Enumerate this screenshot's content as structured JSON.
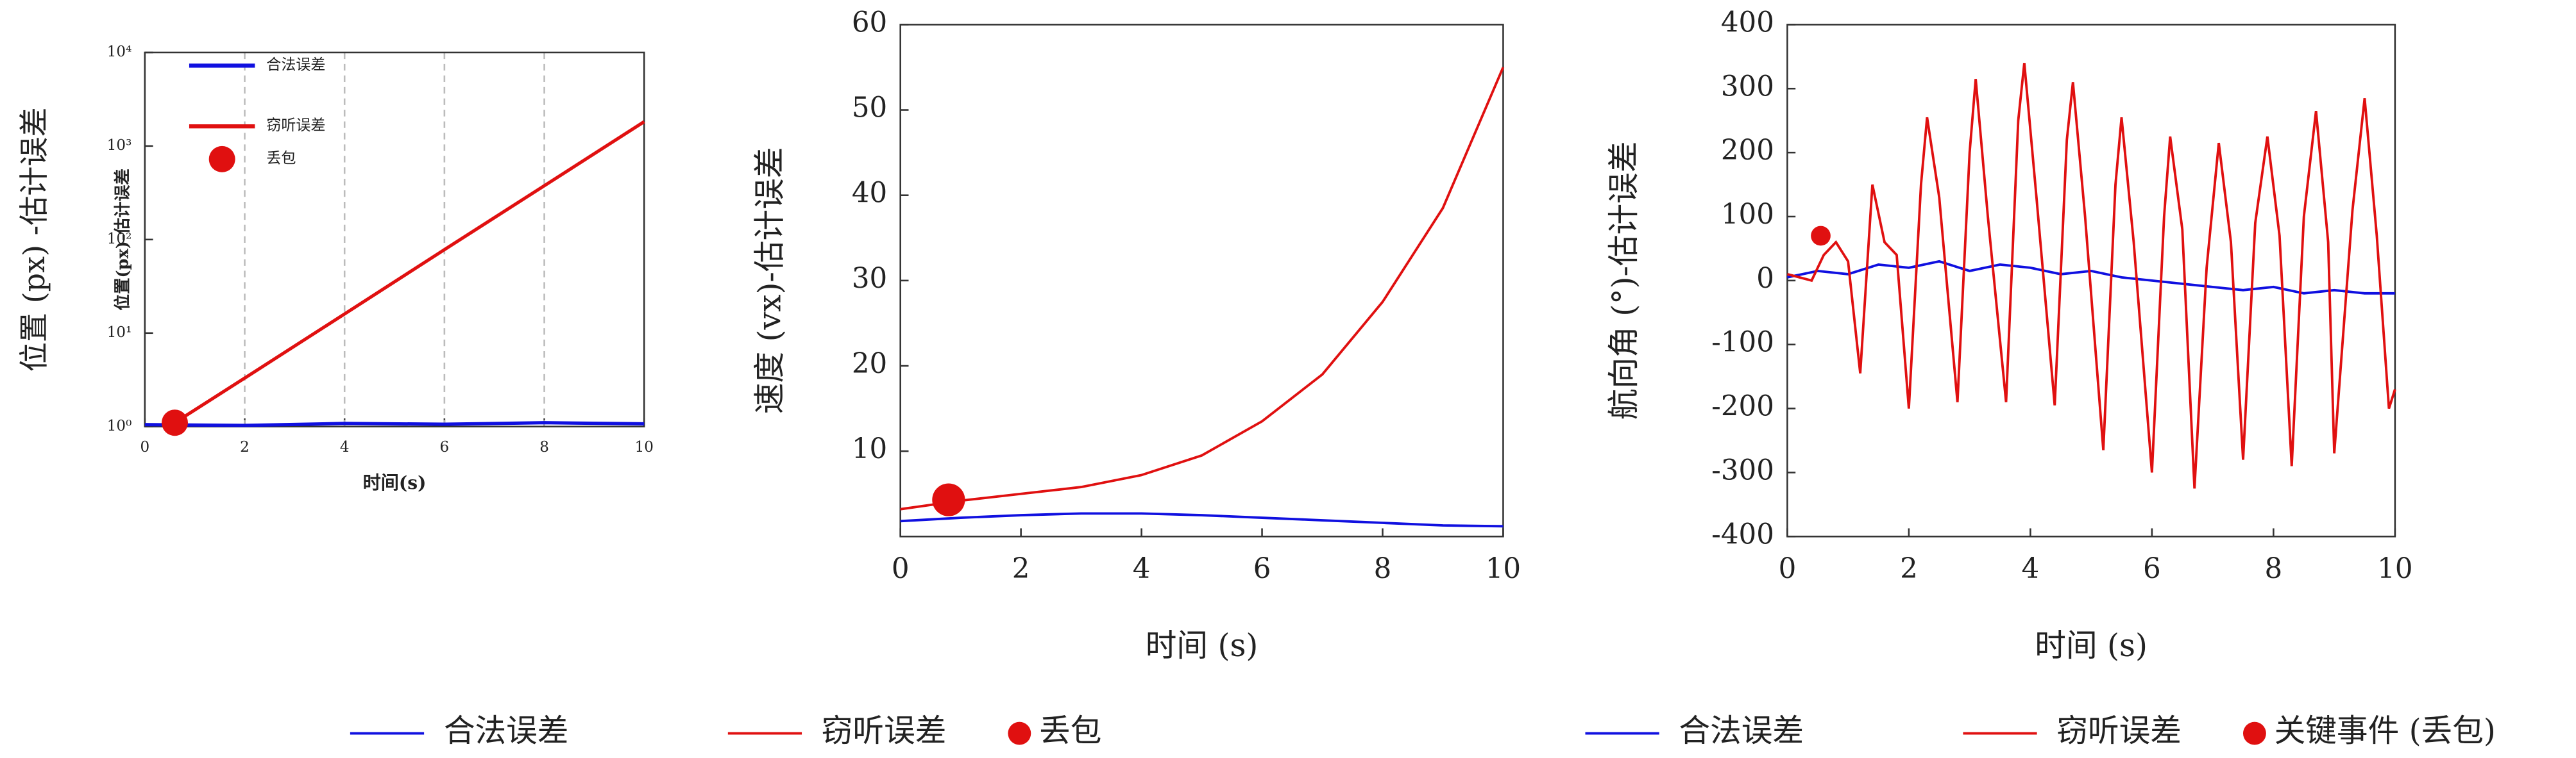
{
  "chart_data": [
    {
      "type": "line",
      "ylabel": "位置 (px) -估计误差",
      "ylabel_inner": "位置(px)-估计误差",
      "xlabel": "时间(s)",
      "xlim": [
        0,
        10
      ],
      "ylim": [
        1,
        10000
      ],
      "log_y": true,
      "grid": true,
      "legend": "upper left",
      "xticks": [
        0,
        2,
        4,
        6,
        8,
        10
      ],
      "yticks": [
        {
          "value": 1,
          "label": "10⁰"
        },
        {
          "value": 10,
          "label": "10¹"
        },
        {
          "value": 100,
          "label": "10²"
        },
        {
          "value": 1000,
          "label": "10³"
        },
        {
          "value": 10000,
          "label": "10⁴"
        }
      ],
      "series": [
        {
          "name": "合法误差",
          "color": "#1010e0",
          "style": "line",
          "x": [
            0,
            2,
            4,
            6,
            8,
            10
          ],
          "values": [
            1.05,
            1.03,
            1.08,
            1.06,
            1.1,
            1.07
          ]
        },
        {
          "name": "窃听误差",
          "color": "#e01010",
          "style": "line",
          "x": [
            0.6,
            2,
            4,
            6,
            8,
            10
          ],
          "values": [
            1.1,
            3.3,
            16,
            78,
            376,
            1820
          ]
        },
        {
          "name": "丢包",
          "color": "#e01010",
          "style": "marker",
          "x": [
            0.6
          ],
          "values": [
            1.1
          ]
        }
      ]
    },
    {
      "type": "line",
      "ylabel": "速度 (vx)-估计误差",
      "xlabel": "时间 (s)",
      "xlim": [
        0,
        10
      ],
      "ylim": [
        0,
        60
      ],
      "log_y": false,
      "grid": false,
      "legend": "below",
      "xticks": [
        0,
        2,
        4,
        6,
        8,
        10
      ],
      "yticks": [
        10,
        20,
        30,
        40,
        50,
        60
      ],
      "series": [
        {
          "name": "合法误差",
          "color": "#1010e0",
          "style": "line",
          "x": [
            0,
            1,
            2,
            3,
            4,
            5,
            6,
            7,
            8,
            9,
            10
          ],
          "values": [
            1.8,
            2.2,
            2.5,
            2.7,
            2.7,
            2.5,
            2.2,
            1.9,
            1.6,
            1.3,
            1.2
          ]
        },
        {
          "name": "窃听误差",
          "color": "#e01010",
          "style": "line",
          "x": [
            0,
            1,
            2,
            3,
            4,
            5,
            6,
            7,
            8,
            9,
            10
          ],
          "values": [
            3.2,
            4.2,
            5.0,
            5.8,
            7.2,
            9.5,
            13.5,
            19,
            27.5,
            38.5,
            55
          ]
        },
        {
          "name": "丢包",
          "color": "#e01010",
          "style": "marker",
          "x": [
            0.8
          ],
          "values": [
            4.3
          ]
        }
      ]
    },
    {
      "type": "line",
      "ylabel": "航向角 (°)-估计误差",
      "xlabel": "时间 (s)",
      "xlim": [
        0,
        10
      ],
      "ylim": [
        -400,
        400
      ],
      "log_y": false,
      "grid": false,
      "legend": "below",
      "xticks": [
        0,
        2,
        4,
        6,
        8,
        10
      ],
      "yticks": [
        -400,
        -300,
        -200,
        -100,
        0,
        100,
        200,
        300,
        400
      ],
      "series": [
        {
          "name": "合法误差",
          "color": "#1010e0",
          "style": "line",
          "x": [
            0,
            0.5,
            1,
            1.5,
            2,
            2.5,
            3,
            3.5,
            4,
            4.5,
            5,
            5.5,
            6,
            6.5,
            7,
            7.5,
            8,
            8.5,
            9,
            9.5,
            10
          ],
          "values": [
            5,
            15,
            10,
            25,
            20,
            30,
            15,
            25,
            20,
            10,
            15,
            5,
            0,
            -5,
            -10,
            -15,
            -10,
            -20,
            -15,
            -20,
            -20
          ]
        },
        {
          "name": "窃听误差",
          "color": "#e01010",
          "style": "line",
          "x": [
            0,
            0.2,
            0.4,
            0.6,
            0.8,
            1.0,
            1.2,
            1.4,
            1.6,
            1.8,
            2.0,
            2.2,
            2.3,
            2.5,
            2.8,
            3.0,
            3.1,
            3.3,
            3.6,
            3.8,
            3.9,
            4.1,
            4.4,
            4.6,
            4.7,
            4.9,
            5.2,
            5.4,
            5.5,
            5.7,
            6.0,
            6.2,
            6.3,
            6.5,
            6.7,
            6.9,
            7.1,
            7.3,
            7.5,
            7.7,
            7.9,
            8.1,
            8.3,
            8.5,
            8.7,
            8.9,
            9.0,
            9.3,
            9.5,
            9.7,
            9.9,
            10
          ],
          "values": [
            10,
            5,
            0,
            40,
            60,
            30,
            -145,
            150,
            60,
            40,
            -200,
            150,
            255,
            130,
            -190,
            200,
            315,
            100,
            -190,
            250,
            340,
            130,
            -195,
            220,
            310,
            100,
            -265,
            150,
            255,
            60,
            -300,
            100,
            225,
            80,
            -325,
            20,
            215,
            60,
            -280,
            90,
            225,
            70,
            -290,
            100,
            265,
            60,
            -270,
            110,
            285,
            70,
            -200,
            -170
          ]
        },
        {
          "name": "关键事件 (丢包)",
          "color": "#e01010",
          "style": "marker",
          "x": [
            0.55
          ],
          "values": [
            70
          ]
        }
      ]
    }
  ]
}
